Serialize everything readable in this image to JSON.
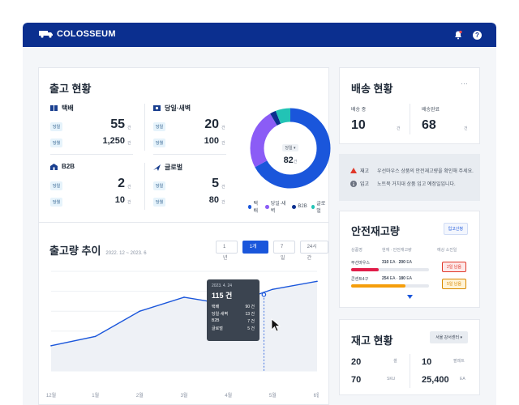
{
  "brand": {
    "name": "COLOSSEUM"
  },
  "shipping": {
    "title": "출고 현황",
    "groups": [
      {
        "name": "택배",
        "rows": [
          {
            "tag": "당일",
            "value": "55",
            "unit": "건"
          },
          {
            "tag": "당월",
            "value": "1,250",
            "unit": "건"
          }
        ]
      },
      {
        "name": "당일·새벽",
        "rows": [
          {
            "tag": "당일",
            "value": "20",
            "unit": "건"
          },
          {
            "tag": "당월",
            "value": "100",
            "unit": "건"
          }
        ]
      },
      {
        "name": "B2B",
        "rows": [
          {
            "tag": "당일",
            "value": "2",
            "unit": "건"
          },
          {
            "tag": "당월",
            "value": "10",
            "unit": "건"
          }
        ]
      },
      {
        "name": "글로벌",
        "rows": [
          {
            "tag": "당일",
            "value": "5",
            "unit": "건"
          },
          {
            "tag": "당월",
            "value": "80",
            "unit": "건"
          }
        ]
      }
    ],
    "donut": {
      "selector": "당일",
      "center_value": "82",
      "center_unit": "건",
      "slices": [
        {
          "name": "택배",
          "value": 55,
          "color": "#1a56db"
        },
        {
          "name": "당일·새벽",
          "value": 20,
          "color": "#8b5cf6"
        },
        {
          "name": "B2B",
          "value": 2,
          "color": "#0b2f8f"
        },
        {
          "name": "글로벌",
          "value": 5,
          "color": "#22c3b5"
        }
      ]
    }
  },
  "trend": {
    "title": "출고량 추이",
    "period": "2022. 12 ~ 2023. 6",
    "ranges": [
      "1년",
      "1개월",
      "7일",
      "24시간"
    ],
    "active_range": "1개월",
    "tooltip": {
      "date": "2023. 4. 24",
      "total": "115 건",
      "items": [
        {
          "label": "택배",
          "value": "90 건"
        },
        {
          "label": "당일·새벽",
          "value": "13 건"
        },
        {
          "label": "B2B",
          "value": "7 건"
        },
        {
          "label": "글로벌",
          "value": "5 건"
        }
      ]
    }
  },
  "chart_data": {
    "type": "line",
    "categories": [
      "12월",
      "1월",
      "2월",
      "3월",
      "4월",
      "5월",
      "6월"
    ],
    "series": [
      {
        "values": [
          38,
          52,
          90,
          111,
          100,
          123,
          135
        ]
      }
    ],
    "ylim": [
      0,
      150
    ],
    "grid": true,
    "highlight": {
      "x": "2023. 4. 24",
      "y": 115
    }
  },
  "delivery": {
    "title": "배송 현황",
    "more": "···",
    "items": [
      {
        "label": "배송 중",
        "value": "10",
        "unit": "건"
      },
      {
        "label": "배송완료",
        "value": "68",
        "unit": "건"
      }
    ]
  },
  "notices": [
    {
      "tag": "재고",
      "text": "우선마우스 상품의 안전재고량을 확인해 주세요."
    },
    {
      "tag": "입고",
      "text": "노트북 거치대 상품 입고 예정일입니다."
    }
  ],
  "safety": {
    "title": "안전재고량",
    "button": "입고신청",
    "headers": [
      "상품명",
      "현재 · 안전재고량",
      "예상 소진일"
    ],
    "rows": [
      {
        "name": "무선마우스",
        "current": "310",
        "safe": "200",
        "unit": "EA",
        "ratio": 0.35,
        "color": "#e11d48",
        "due": "2일 남음",
        "due_bg": "#fde8e8",
        "due_color": "#e0392b"
      },
      {
        "name": "콘센트4구",
        "current": "254",
        "safe": "180",
        "unit": "EA",
        "ratio": 0.7,
        "color": "#f59e0b",
        "due": "5일 남음",
        "due_bg": "#fff3d6",
        "due_color": "#d98a00"
      }
    ]
  },
  "inventory": {
    "title": "재고 현황",
    "select": "서울 강서센터",
    "cells": [
      {
        "value": "20",
        "unit": "셀"
      },
      {
        "value": "10",
        "unit": "팔레트"
      },
      {
        "value": "70",
        "unit": "SKU"
      },
      {
        "value": "25,400",
        "unit": "EA"
      }
    ]
  }
}
